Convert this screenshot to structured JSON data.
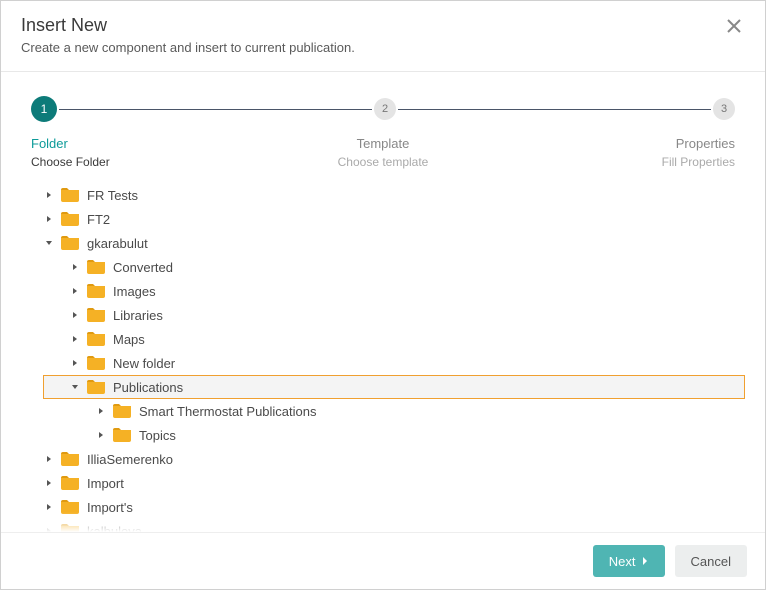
{
  "modal": {
    "title": "Insert New",
    "subtitle": "Create a new component and insert to current publication."
  },
  "stepper": {
    "steps": [
      {
        "num": "1",
        "name": "Folder",
        "sub": "Choose Folder",
        "active": true
      },
      {
        "num": "2",
        "name": "Template",
        "sub": "Choose template",
        "active": false
      },
      {
        "num": "3",
        "name": "Properties",
        "sub": "Fill Properties",
        "active": false
      }
    ]
  },
  "tree": [
    {
      "label": "FR Tests",
      "level": 0,
      "expanded": false
    },
    {
      "label": "FT2",
      "level": 0,
      "expanded": false
    },
    {
      "label": "gkarabulut",
      "level": 0,
      "expanded": true
    },
    {
      "label": "Converted",
      "level": 1,
      "expanded": false
    },
    {
      "label": "Images",
      "level": 1,
      "expanded": false
    },
    {
      "label": "Libraries",
      "level": 1,
      "expanded": false
    },
    {
      "label": "Maps",
      "level": 1,
      "expanded": false
    },
    {
      "label": "New folder",
      "level": 1,
      "expanded": false
    },
    {
      "label": "Publications",
      "level": 1,
      "expanded": true,
      "selected": true
    },
    {
      "label": "Smart Thermostat Publications",
      "level": 2,
      "expanded": false
    },
    {
      "label": "Topics",
      "level": 2,
      "expanded": false
    },
    {
      "label": "IlliaSemerenko",
      "level": 0,
      "expanded": false
    },
    {
      "label": "Import",
      "level": 0,
      "expanded": false
    },
    {
      "label": "Import's",
      "level": 0,
      "expanded": false
    },
    {
      "label": "kalbulova",
      "level": 0,
      "expanded": false
    }
  ],
  "buttons": {
    "next": "Next",
    "cancel": "Cancel"
  },
  "colors": {
    "accent": "#0d9b99",
    "accent_dark": "#0d7b79",
    "folder": "#f5b125",
    "folder_tab": "#e09a10",
    "btn_primary": "#4fb5b3",
    "selected_outline": "#f0a030"
  }
}
